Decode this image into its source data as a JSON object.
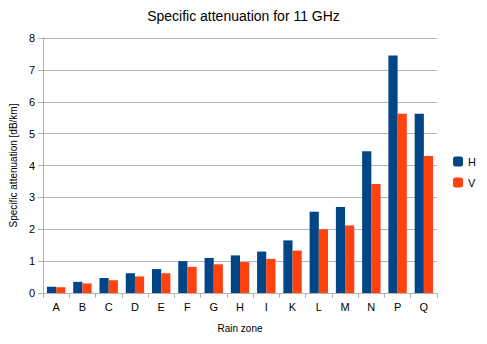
{
  "chart_data": {
    "type": "bar",
    "title": "Specific attenuation for 11 GHz",
    "x_label": "Rain zone",
    "y_label": "Specific attenuation [dB/km]",
    "categories": [
      "A",
      "B",
      "C",
      "D",
      "E",
      "F",
      "G",
      "H",
      "I",
      "K",
      "L",
      "M",
      "N",
      "P",
      "Q"
    ],
    "series": [
      {
        "name": "H",
        "color": "#004586",
        "values": [
          0.2,
          0.35,
          0.47,
          0.62,
          0.75,
          1.0,
          1.1,
          1.18,
          1.3,
          1.65,
          2.55,
          2.7,
          4.45,
          7.45,
          5.62
        ]
      },
      {
        "name": "V",
        "color": "#ff420e",
        "values": [
          0.18,
          0.3,
          0.4,
          0.52,
          0.62,
          0.82,
          0.9,
          0.97,
          1.07,
          1.33,
          2.0,
          2.12,
          3.42,
          5.62,
          4.3
        ]
      }
    ],
    "ylim": [
      0,
      8
    ],
    "yticks": [
      0,
      1,
      2,
      3,
      4,
      5,
      6,
      7,
      8
    ],
    "grid": true,
    "legend": "right"
  }
}
